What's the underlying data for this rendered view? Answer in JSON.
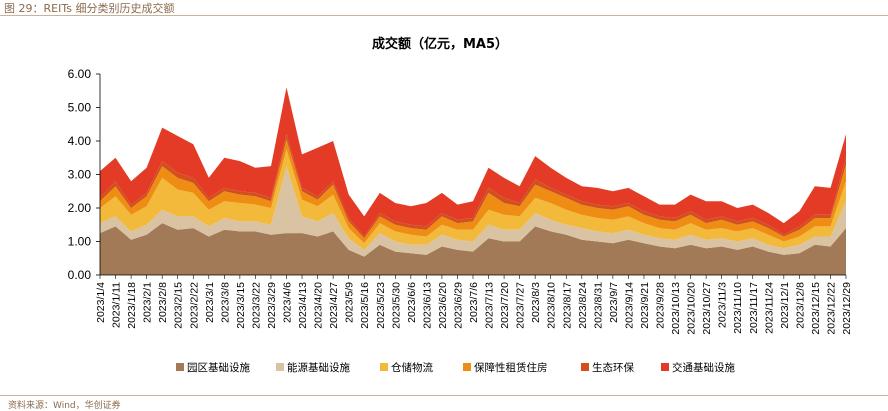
{
  "caption": "图 29：REITs 细分类别历史成交额",
  "source": "资料来源：Wind，华创证券",
  "chart_data": {
    "type": "area",
    "stacked": true,
    "title": "成交额（亿元，MA5）",
    "xlabel": "",
    "ylabel": "",
    "ylim": [
      0,
      6
    ],
    "yticks": [
      "0.00",
      "1.00",
      "2.00",
      "3.00",
      "4.00",
      "5.00",
      "6.00"
    ],
    "grid": false,
    "legend_position": "bottom",
    "x_tick_labels": [
      "2023/1/4",
      "2023/1/11",
      "2023/1/18",
      "2023/2/1",
      "2023/2/8",
      "2023/2/15",
      "2023/2/22",
      "2023/3/1",
      "2023/3/8",
      "2023/3/15",
      "2023/3/22",
      "2023/3/29",
      "2023/4/6",
      "2023/4/13",
      "2023/4/20",
      "2023/4/27",
      "2023/5/9",
      "2023/5/16",
      "2023/5/23",
      "2023/5/30",
      "2023/6/6",
      "2023/6/13",
      "2023/6/20",
      "2023/6/29",
      "2023/7/6",
      "2023/7/13",
      "2023/7/20",
      "2023/7/27",
      "2023/8/3",
      "2023/8/10",
      "2023/8/17",
      "2023/8/24",
      "2023/8/31",
      "2023/9/7",
      "2023/9/14",
      "2023/9/21",
      "2023/9/28",
      "2023/10/13",
      "2023/10/20",
      "2023/10/27",
      "2023/11/3",
      "2023/11/10",
      "2023/11/17",
      "2023/11/24",
      "2023/12/1",
      "2023/12/8",
      "2023/12/15",
      "2023/12/22",
      "2023/12/29"
    ],
    "colors": [
      "#a27a57",
      "#d9c3a2",
      "#f3b93a",
      "#ee8c14",
      "#d24f1e",
      "#e43b26"
    ],
    "series": [
      {
        "name": "园区基础设施",
        "values": [
          1.25,
          1.45,
          1.05,
          1.2,
          1.55,
          1.35,
          1.4,
          1.15,
          1.35,
          1.3,
          1.3,
          1.2,
          1.25,
          1.25,
          1.15,
          1.3,
          0.75,
          0.55,
          0.9,
          0.7,
          0.65,
          0.6,
          0.85,
          0.75,
          0.7,
          1.1,
          1.0,
          1.0,
          1.45,
          1.3,
          1.2,
          1.05,
          1.0,
          0.95,
          1.05,
          0.95,
          0.85,
          0.8,
          0.9,
          0.8,
          0.85,
          0.75,
          0.85,
          0.7,
          0.6,
          0.65,
          0.9,
          0.85,
          1.4
        ]
      },
      {
        "name": "能源基础设施",
        "values": [
          0.3,
          0.3,
          0.25,
          0.3,
          0.4,
          0.4,
          0.35,
          0.3,
          0.35,
          0.3,
          0.3,
          0.3,
          2.0,
          0.5,
          0.45,
          0.55,
          0.35,
          0.2,
          0.35,
          0.3,
          0.25,
          0.3,
          0.35,
          0.3,
          0.3,
          0.4,
          0.35,
          0.35,
          0.4,
          0.35,
          0.3,
          0.35,
          0.3,
          0.3,
          0.3,
          0.25,
          0.25,
          0.25,
          0.3,
          0.25,
          0.25,
          0.25,
          0.25,
          0.2,
          0.2,
          0.25,
          0.25,
          0.3,
          0.8
        ]
      },
      {
        "name": "仓储物流",
        "values": [
          0.45,
          0.6,
          0.5,
          0.55,
          0.95,
          0.8,
          0.7,
          0.5,
          0.5,
          0.55,
          0.5,
          0.5,
          0.5,
          0.5,
          0.45,
          0.55,
          0.3,
          0.2,
          0.3,
          0.3,
          0.3,
          0.25,
          0.3,
          0.3,
          0.35,
          0.45,
          0.45,
          0.4,
          0.45,
          0.5,
          0.45,
          0.4,
          0.4,
          0.4,
          0.4,
          0.35,
          0.3,
          0.3,
          0.35,
          0.3,
          0.3,
          0.3,
          0.3,
          0.3,
          0.2,
          0.25,
          0.3,
          0.3,
          0.6
        ]
      },
      {
        "name": "保障性租赁住房",
        "values": [
          0.2,
          0.3,
          0.2,
          0.3,
          0.35,
          0.35,
          0.3,
          0.25,
          0.3,
          0.25,
          0.25,
          0.2,
          0.3,
          0.25,
          0.2,
          0.3,
          0.2,
          0.15,
          0.2,
          0.2,
          0.2,
          0.2,
          0.25,
          0.2,
          0.25,
          0.5,
          0.35,
          0.3,
          0.4,
          0.35,
          0.35,
          0.3,
          0.3,
          0.3,
          0.3,
          0.25,
          0.25,
          0.25,
          0.25,
          0.2,
          0.25,
          0.2,
          0.2,
          0.2,
          0.15,
          0.2,
          0.25,
          0.25,
          0.5
        ]
      },
      {
        "name": "生态环保",
        "values": [
          0.1,
          0.15,
          0.1,
          0.1,
          0.15,
          0.15,
          0.15,
          0.1,
          0.1,
          0.1,
          0.1,
          0.1,
          0.15,
          0.1,
          0.1,
          0.1,
          0.1,
          0.05,
          0.1,
          0.1,
          0.1,
          0.1,
          0.1,
          0.1,
          0.1,
          0.15,
          0.15,
          0.1,
          0.15,
          0.1,
          0.1,
          0.1,
          0.1,
          0.1,
          0.1,
          0.1,
          0.1,
          0.1,
          0.1,
          0.1,
          0.1,
          0.1,
          0.1,
          0.1,
          0.05,
          0.1,
          0.1,
          0.1,
          0.2
        ]
      },
      {
        "name": "交通基础设施",
        "values": [
          0.8,
          0.7,
          0.7,
          0.75,
          1.0,
          1.1,
          1.0,
          0.6,
          0.9,
          0.9,
          0.75,
          0.95,
          1.4,
          1.0,
          1.45,
          1.2,
          0.7,
          0.6,
          0.6,
          0.55,
          0.55,
          0.7,
          0.6,
          0.45,
          0.5,
          0.6,
          0.6,
          0.5,
          0.7,
          0.6,
          0.5,
          0.45,
          0.5,
          0.45,
          0.45,
          0.45,
          0.35,
          0.4,
          0.5,
          0.55,
          0.45,
          0.4,
          0.4,
          0.35,
          0.35,
          0.45,
          0.85,
          0.8,
          0.7
        ]
      }
    ]
  }
}
